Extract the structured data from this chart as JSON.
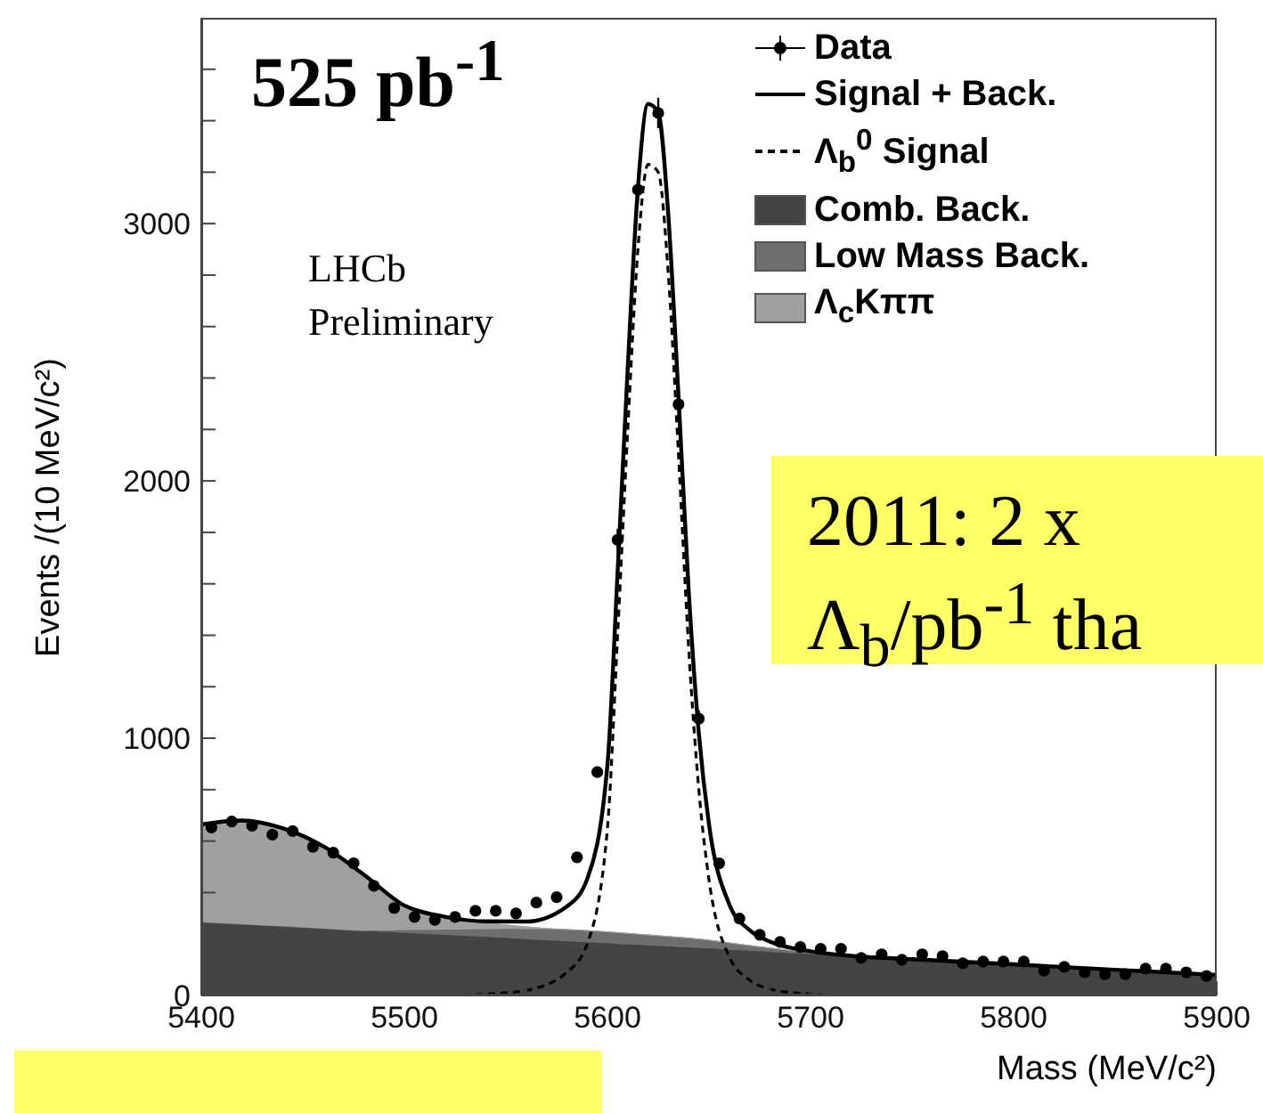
{
  "chart_data": {
    "type": "line",
    "xlabel": "Mass (MeV/c²)",
    "ylabel": "Events /(10 MeV/c²)",
    "annotations": [
      "525 pb$^{-1}$",
      "LHCb",
      "Preliminary",
      "2011: 2 x",
      "Λ$_{b}$/pb$^{-1}$ tha"
    ],
    "xlim": [
      5400,
      5900
    ],
    "xticks": [
      5400,
      {
        "value": 5420,
        "label": null
      },
      {
        "value": 5440,
        "label": null
      },
      {
        "value": 5460,
        "label": null
      },
      {
        "value": 5480,
        "label": null
      },
      5500,
      {
        "value": 5520,
        "label": null
      },
      {
        "value": 5540,
        "label": null
      },
      {
        "value": 5560,
        "label": null
      },
      {
        "value": 5580,
        "label": null
      },
      5600,
      {
        "value": 5620,
        "label": null
      },
      {
        "value": 5640,
        "label": null
      },
      {
        "value": 5660,
        "label": null
      },
      {
        "value": 5680,
        "label": null
      },
      5700,
      {
        "value": 5720,
        "label": null
      },
      {
        "value": 5740,
        "label": null
      },
      {
        "value": 5760,
        "label": null
      },
      {
        "value": 5780,
        "label": null
      },
      5800,
      {
        "value": 5820,
        "label": null
      },
      {
        "value": 5840,
        "label": null
      },
      {
        "value": 5860,
        "label": null
      },
      {
        "value": 5880,
        "label": null
      },
      5900
    ],
    "ylim": [
      0,
      3800
    ],
    "yticks": [
      0,
      {
        "value": 200,
        "label": null
      },
      {
        "value": 400,
        "label": null
      },
      {
        "value": 600,
        "label": null
      },
      {
        "value": 800,
        "label": null
      },
      1000,
      {
        "value": 1200,
        "label": null
      },
      {
        "value": 1400,
        "label": null
      },
      {
        "value": 1600,
        "label": null
      },
      {
        "value": 1800,
        "label": null
      },
      2000,
      {
        "value": 2200,
        "label": null
      },
      {
        "value": 2400,
        "label": null
      },
      {
        "value": 2600,
        "label": null
      },
      {
        "value": 2800,
        "label": null
      },
      3000,
      {
        "value": 3200,
        "label": null
      },
      {
        "value": 3400,
        "label": null
      },
      {
        "value": 3600,
        "label": null
      }
    ],
    "grid": false,
    "legend": "top right",
    "stacked": true,
    "x": [
      5400,
      5420,
      5440,
      5460,
      5480,
      5500,
      5520,
      5540,
      5560,
      5580,
      5590,
      5600,
      5605,
      5610,
      5615,
      5620,
      5625,
      5630,
      5635,
      5640,
      5645,
      5650,
      5660,
      5670,
      5680,
      5700,
      5720,
      5750,
      5800,
      5850,
      5900
    ],
    "series": [
      {
        "name": "Data",
        "type": "scatter",
        "color": "#000000",
        "marker": "circle",
        "x": [
          5405,
          5415,
          5425,
          5435,
          5445,
          5455,
          5465,
          5475,
          5485,
          5495,
          5505,
          5515,
          5525,
          5535,
          5545,
          5555,
          5565,
          5575,
          5585,
          5595,
          5605,
          5615,
          5625,
          5635,
          5645,
          5655,
          5665,
          5675,
          5685,
          5695,
          5705,
          5715,
          5725,
          5735,
          5745,
          5755,
          5765,
          5775,
          5785,
          5795,
          5805,
          5815,
          5825,
          5835,
          5845,
          5855,
          5865,
          5875,
          5885,
          5895
        ],
        "values": [
          653,
          676,
          660,
          625,
          639,
          578,
          555,
          514,
          426,
          340,
          305,
          294,
          305,
          329,
          329,
          319,
          361,
          382,
          537,
          868,
          1771,
          3132,
          3430,
          2298,
          1076,
          514,
          299,
          236,
          208,
          188,
          181,
          181,
          146,
          160,
          139,
          160,
          153,
          125,
          132,
          132,
          132,
          97,
          111,
          90,
          83,
          83,
          104,
          104,
          90,
          76
        ],
        "errors": [
          null,
          null,
          null,
          null,
          null,
          null,
          null,
          null,
          null,
          null,
          null,
          null,
          null,
          null,
          null,
          null,
          null,
          null,
          null,
          null,
          42,
          56,
          59,
          48,
          33,
          null,
          null,
          null,
          null,
          null,
          null,
          null,
          null,
          null,
          null,
          null,
          null,
          null,
          null,
          null,
          null,
          null,
          null,
          null,
          null,
          null,
          null,
          null,
          null,
          null
        ]
      },
      {
        "name": "Signal + Back.",
        "type": "line",
        "color": "#000000",
        "line_style": "solid",
        "values": [
          665,
          680,
          650,
          580,
          470,
          350,
          306,
          288,
          287,
          346,
          452,
          897,
          1644,
          2441,
          3138,
          3465,
          3432,
          3029,
          2326,
          1573,
          1019,
          665,
          354,
          254,
          209,
          172,
          154,
          141,
          121,
          100,
          80
        ]
      },
      {
        "name": "Λ$_{b}$$^{0}$ Signal",
        "type": "line",
        "color": "#000000",
        "line_style": "dashed",
        "values": [
          0,
          0,
          0,
          0,
          0,
          0,
          0,
          5,
          20,
          90,
          200,
          650,
          1400,
          2200,
          2900,
          3230,
          3200,
          2800,
          2100,
          1350,
          800,
          450,
          150,
          60,
          25,
          5,
          0,
          0,
          0,
          0,
          0
        ]
      },
      {
        "name": "Comb. Back.",
        "type": "area",
        "color": "#444444",
        "values": [
          285,
          277,
          269,
          260,
          252,
          244,
          236,
          228,
          219,
          211,
          207,
          203,
          201,
          199,
          197,
          195,
          193,
          191,
          189,
          187,
          185,
          183,
          178,
          174,
          170,
          162,
          154,
          141,
          121,
          100,
          80
        ]
      },
      {
        "name": "Low Mass Back.",
        "type": "area",
        "color": "#6e6e6e",
        "values": [
          0,
          0,
          0,
          0,
          0,
          10,
          20,
          30,
          40,
          45,
          45,
          44,
          43,
          42,
          41,
          40,
          39,
          38,
          37,
          36,
          34,
          32,
          26,
          20,
          14,
          5,
          0,
          0,
          0,
          0,
          0
        ]
      },
      {
        "name": "Λ$_{c}$Kππ",
        "type": "area",
        "color": "#a0a0a0",
        "values": [
          380,
          403,
          381,
          320,
          218,
          96,
          50,
          25,
          8,
          0,
          0,
          0,
          0,
          0,
          0,
          0,
          0,
          0,
          0,
          0,
          0,
          0,
          0,
          0,
          0,
          0,
          0,
          0,
          0,
          0,
          0
        ]
      }
    ]
  }
}
